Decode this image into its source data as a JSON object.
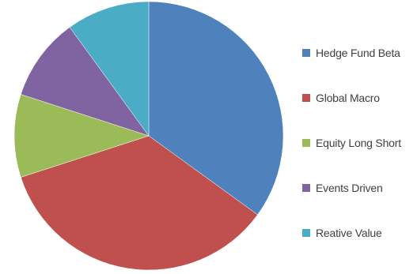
{
  "chart_data": {
    "type": "pie",
    "title": "",
    "legend_position": "right",
    "slices": [
      {
        "label": "Hedge Fund Beta",
        "value": 35,
        "color": "#4F81BD"
      },
      {
        "label": "Global Macro",
        "value": 35,
        "color": "#C0504D"
      },
      {
        "label": "Equity Long Short",
        "value": 10,
        "color": "#9BBB59"
      },
      {
        "label": "Events Driven",
        "value": 10,
        "color": "#8064A2"
      },
      {
        "label": "Reative Value",
        "value": 10,
        "color": "#4BACC6"
      }
    ]
  }
}
